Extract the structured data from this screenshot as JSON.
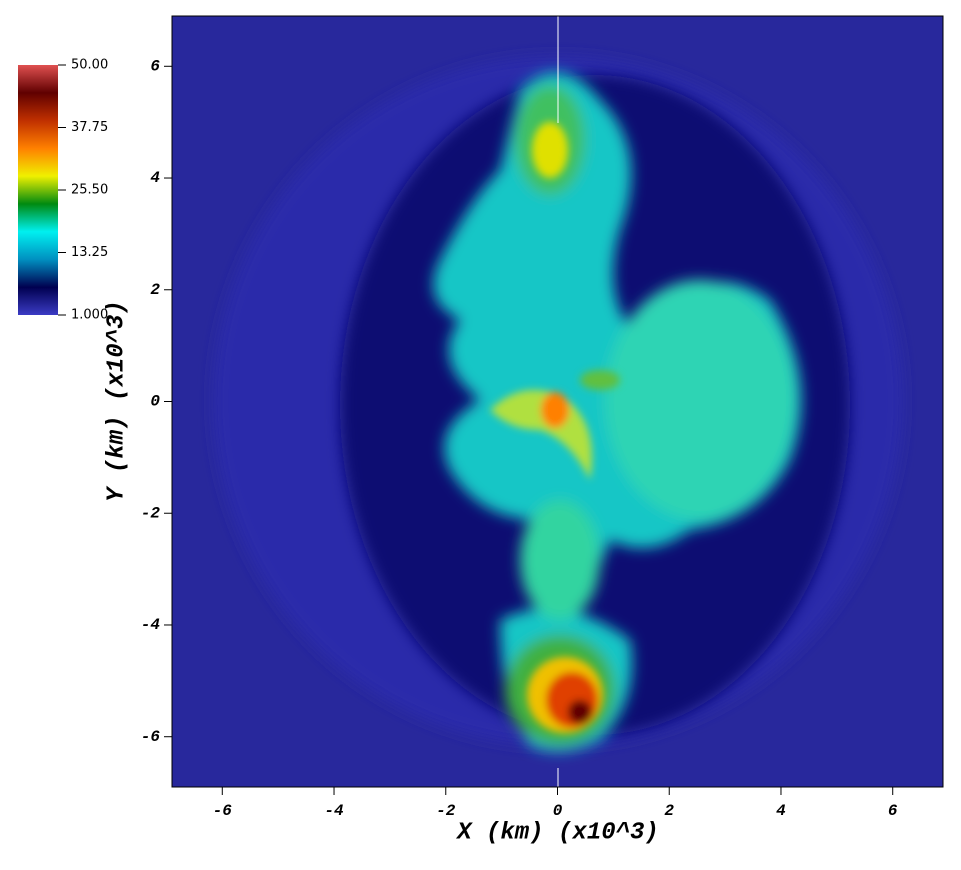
{
  "chart_data": {
    "type": "heatmap",
    "x_label": "X  (km)  (x10^3)",
    "y_label": "Y  (km)  (x10^3)",
    "xlim": [
      -6.9,
      6.9
    ],
    "ylim": [
      -6.9,
      6.9
    ],
    "xticks": [
      -6,
      -4,
      -2,
      0,
      2,
      4,
      6
    ],
    "yticks": [
      -6,
      -4,
      -2,
      0,
      2,
      4,
      6
    ],
    "colorbar": {
      "lim": [
        1,
        50
      ],
      "ticks": [
        {
          "value": 50,
          "label": "50.00"
        },
        {
          "value": 37.75,
          "label": "37.75"
        },
        {
          "value": 25.5,
          "label": "25.50"
        },
        {
          "value": 13.25,
          "label": "13.25"
        },
        {
          "value": 1,
          "label": "1.000"
        }
      ],
      "colormap": [
        "#3b3bc4",
        "#000050",
        "#0090c0",
        "#00f0f0",
        "#008a10",
        "#f0f000",
        "#ff8000",
        "#c03000",
        "#600000",
        "#e05050"
      ]
    }
  }
}
